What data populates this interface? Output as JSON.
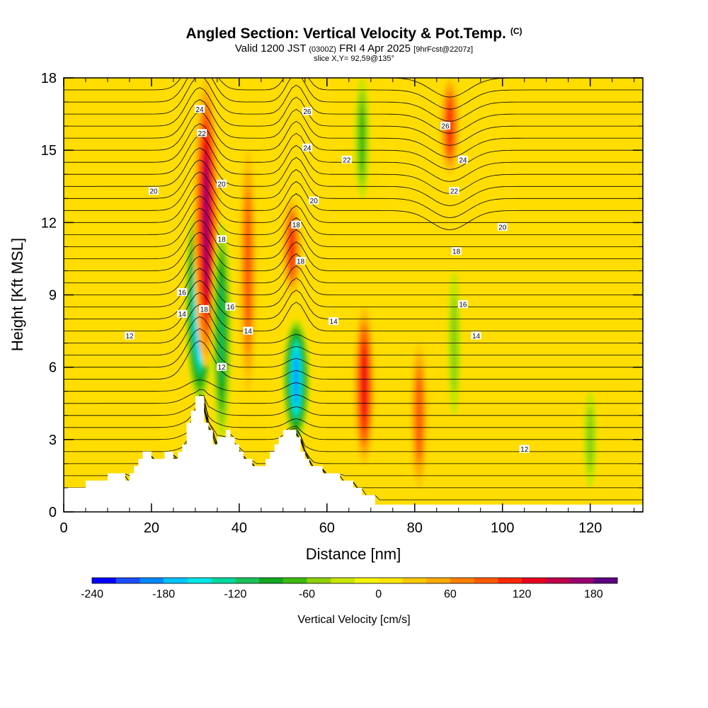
{
  "title": {
    "main": "Angled Section: Vertical Velocity & Pot.Temp.",
    "copyright": "(C)",
    "valid_prefix": "Valid 1200 JST",
    "valid_utc": "(0300Z)",
    "valid_date": "FRI 4 Apr 2025",
    "forecast": "[9hrFcst@2207z]",
    "slice": "slice X,Y= 92,59@135°"
  },
  "chart_data": {
    "type": "heatmap",
    "title": "Angled Section: Vertical Velocity & Pot.Temp.",
    "xlabel": "Distance [nm]",
    "ylabel": "Height [Kft MSL]",
    "xlim": [
      0,
      132
    ],
    "ylim": [
      0,
      18
    ],
    "x_ticks": [
      "0",
      "20",
      "40",
      "60",
      "80",
      "100",
      "120"
    ],
    "y_ticks": [
      "0",
      "3",
      "6",
      "9",
      "12",
      "15",
      "18"
    ],
    "colorbar": {
      "label": "Vertical Velocity [cm/s]",
      "tick_labels": [
        "-240",
        "-180",
        "-120",
        "-60",
        "0",
        "60",
        "120",
        "180"
      ],
      "range": [
        -240,
        200
      ],
      "step": 20,
      "colors": [
        "#0000ff",
        "#1a4dff",
        "#0088ff",
        "#00c4ff",
        "#00e6e6",
        "#00d9a0",
        "#19c35a",
        "#10a81e",
        "#3cba10",
        "#8ed10a",
        "#c8e600",
        "#f5f500",
        "#ffe600",
        "#ffc800",
        "#ffaa00",
        "#ff8000",
        "#ff5a00",
        "#ff2800",
        "#e8001e",
        "#c0004a",
        "#9a0070",
        "#5a0080"
      ]
    },
    "velocity_features": [
      {
        "x": 31,
        "z_bottom": 4.5,
        "z_top": 13,
        "w": -200
      },
      {
        "x": 32.5,
        "z_bottom": 6,
        "z_top": 18,
        "w": 150
      },
      {
        "x": 36,
        "z_bottom": 3,
        "z_top": 12,
        "w": -100
      },
      {
        "x": 42,
        "z_bottom": 5,
        "z_top": 15,
        "w": 80
      },
      {
        "x": 53,
        "z_bottom": 3,
        "z_top": 8,
        "w": -180
      },
      {
        "x": 52,
        "z_bottom": 9,
        "z_top": 13,
        "w": 100
      },
      {
        "x": 68.5,
        "z_bottom": 2,
        "z_top": 8.5,
        "w": 120
      },
      {
        "x": 81,
        "z_bottom": 1,
        "z_top": 7,
        "w": 80
      },
      {
        "x": 88,
        "z_bottom": 14,
        "z_top": 18,
        "w": 90
      },
      {
        "x": 68,
        "z_bottom": 13,
        "z_top": 18,
        "w": -60
      },
      {
        "x": 89,
        "z_bottom": 4,
        "z_top": 10,
        "w": -40
      },
      {
        "x": 120,
        "z_bottom": 1,
        "z_top": 5,
        "w": -40
      }
    ],
    "theta_contour_labels": [
      {
        "value": "24",
        "x": 31,
        "z": 16.7
      },
      {
        "value": "22",
        "x": 31.5,
        "z": 15.7
      },
      {
        "value": "20",
        "x": 36,
        "z": 13.6
      },
      {
        "value": "20",
        "x": 20.5,
        "z": 13.3
      },
      {
        "value": "26",
        "x": 55.5,
        "z": 16.6
      },
      {
        "value": "24",
        "x": 55.5,
        "z": 15.1
      },
      {
        "value": "22",
        "x": 64.5,
        "z": 14.6
      },
      {
        "value": "20",
        "x": 57,
        "z": 12.9
      },
      {
        "value": "18",
        "x": 53,
        "z": 11.9
      },
      {
        "value": "18",
        "x": 36,
        "z": 11.3
      },
      {
        "value": "18",
        "x": 54,
        "z": 10.4
      },
      {
        "value": "18",
        "x": 32,
        "z": 8.4
      },
      {
        "value": "16",
        "x": 27,
        "z": 9.1
      },
      {
        "value": "16",
        "x": 38,
        "z": 8.5
      },
      {
        "value": "14",
        "x": 27,
        "z": 8.2
      },
      {
        "value": "14",
        "x": 42,
        "z": 7.5
      },
      {
        "value": "14",
        "x": 61.5,
        "z": 7.9
      },
      {
        "value": "12",
        "x": 15,
        "z": 7.3
      },
      {
        "value": "12",
        "x": 36,
        "z": 6.0
      },
      {
        "value": "26",
        "x": 87,
        "z": 16.0
      },
      {
        "value": "24",
        "x": 91,
        "z": 14.6
      },
      {
        "value": "22",
        "x": 89,
        "z": 13.3
      },
      {
        "value": "20",
        "x": 100,
        "z": 11.8
      },
      {
        "value": "18",
        "x": 89.5,
        "z": 10.8
      },
      {
        "value": "16",
        "x": 91,
        "z": 8.6
      },
      {
        "value": "14",
        "x": 94,
        "z": 7.3
      },
      {
        "value": "12",
        "x": 105,
        "z": 2.6
      }
    ],
    "terrain": {
      "x": [
        0,
        4,
        5,
        9,
        10,
        13,
        14,
        15,
        16,
        17,
        18,
        19,
        20,
        21,
        22,
        23,
        24,
        25,
        26,
        27,
        28,
        29,
        30,
        31,
        32,
        33,
        34,
        35,
        36,
        37,
        38,
        39,
        40,
        41,
        42,
        43,
        44,
        45,
        46,
        47,
        48,
        49,
        50,
        51,
        52,
        53,
        54,
        55,
        56,
        57,
        58,
        59,
        60,
        61,
        62,
        63,
        64,
        65,
        66,
        67,
        68,
        69,
        70,
        71,
        72,
        73,
        132
      ],
      "z": [
        1.0,
        1.0,
        1.3,
        1.3,
        1.6,
        1.6,
        1.3,
        1.6,
        1.9,
        2.2,
        2.5,
        2.5,
        2.2,
        2.2,
        2.2,
        2.5,
        2.5,
        2.2,
        2.5,
        2.8,
        3.7,
        4.2,
        4.8,
        4.8,
        3.7,
        3.4,
        2.8,
        3.1,
        3.1,
        3.4,
        3.1,
        2.8,
        2.5,
        2.2,
        2.2,
        1.9,
        1.9,
        1.9,
        2.2,
        2.5,
        2.8,
        3.1,
        3.4,
        3.4,
        3.4,
        3.1,
        2.5,
        2.2,
        1.9,
        1.9,
        1.9,
        1.6,
        1.6,
        1.6,
        1.6,
        1.3,
        1.3,
        1.3,
        1.0,
        1.0,
        0.7,
        0.7,
        0.7,
        0.3,
        0.3,
        0.3,
        0.3
      ]
    }
  }
}
